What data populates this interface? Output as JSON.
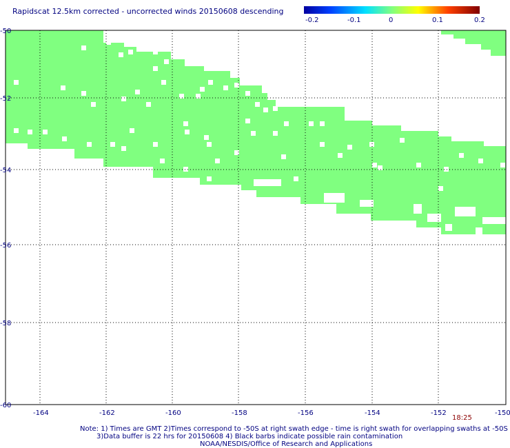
{
  "title": "Rapidscat 12.5km corrected - uncorrected winds 20150608 descending",
  "colorbar": {
    "ticks": [
      "-0.2",
      "-0.1",
      "0",
      "0.1",
      "0.2"
    ],
    "colors": [
      "#0000b0",
      "#0060ff",
      "#00e0ff",
      "#80ff80",
      "#ffff00",
      "#ff8000",
      "#e00000",
      "#800000"
    ]
  },
  "map": {
    "lon_range": [
      -165,
      -150
    ],
    "lat_range": [
      -60,
      -50
    ],
    "x_ticks": [
      "-164",
      "-162",
      "-160",
      "-158",
      "-156",
      "-154",
      "-152",
      "-150"
    ],
    "y_ticks": [
      "-50",
      "-52",
      "-54",
      "-56",
      "-58",
      "-60"
    ],
    "swath_color": "#80ff80",
    "swath_value": "0"
  },
  "time_label": "18:25",
  "notes": [
    "Note: 1) Times are GMT 2)Times correspond to -50S at right swath edge - time is right swath for overlapping swaths at -50S",
    "3)Data buffer is 22 hrs for 20150608 4) Black barbs indicate possible rain contamination",
    "NOAA/NESDIS/Office of Research and Applications"
  ]
}
